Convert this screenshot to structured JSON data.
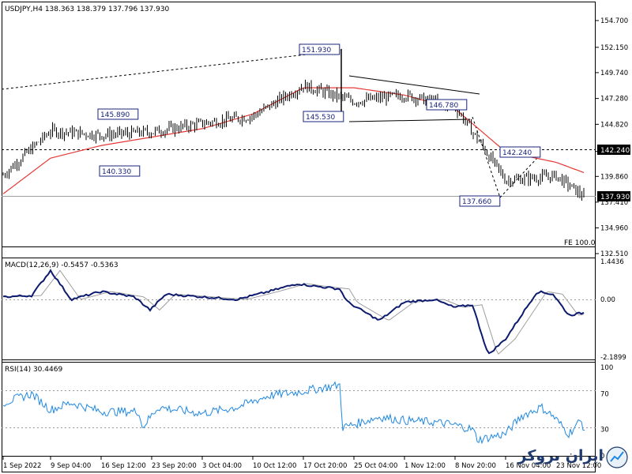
{
  "header": {
    "symbol_timeframe": "USDJPY,H4",
    "ohlc": "138.363 138.379 137.796 137.930"
  },
  "price_axis": {
    "ticks": [
      "154.700",
      "152.150",
      "149.740",
      "147.280",
      "144.820",
      "142.240",
      "139.860",
      "137.410",
      "134.960",
      "132.510"
    ],
    "current_price_label": "137.930",
    "level_label": "142.240"
  },
  "macd": {
    "label": "MACD(12,26,9) -0.5457 -0.5363",
    "ticks": [
      "1.4436",
      "0.00",
      "-2.1899"
    ],
    "zero_label": "0.00"
  },
  "rsi": {
    "label": "RSI(14) 30.4469",
    "ticks": [
      "100",
      "70",
      "30",
      "0"
    ]
  },
  "fe_label": "FE 100.0",
  "time_axis": [
    "1 Sep 2022",
    "9 Sep 04:00",
    "16 Sep 12:00",
    "23 Sep 20:00",
    "3 Oct 04:00",
    "10 Oct 12:00",
    "17 Oct 20:00",
    "25 Oct 04:00",
    "1 Nov 12:00",
    "8 Nov 20:00",
    "16 Nov 04:00",
    "23 Nov 12:00"
  ],
  "annotations": [
    "145.890",
    "140.330",
    "151.930",
    "145.530",
    "146.780",
    "142.240",
    "137.660"
  ],
  "watermark": {
    "brand_text": "ایران بروکر",
    "icon": "chart-logo-icon"
  },
  "chart_data": {
    "type": "line",
    "title": "USDJPY,H4",
    "ylim": [
      132.51,
      154.7
    ],
    "x": [
      "1 Sep 2022",
      "9 Sep 04:00",
      "16 Sep 12:00",
      "23 Sep 20:00",
      "3 Oct 04:00",
      "10 Oct 12:00",
      "17 Oct 20:00",
      "25 Oct 04:00",
      "1 Nov 12:00",
      "8 Nov 20:00",
      "16 Nov 04:00",
      "23 Nov 12:00",
      "end"
    ],
    "series": [
      {
        "values": [
          140.0,
          144.2,
          143.8,
          144.1,
          144.9,
          145.6,
          148.5,
          147.0,
          147.6,
          146.5,
          139.5,
          139.9,
          137.9
        ]
      },
      {
        "values": [
          138.2,
          141.6,
          142.8,
          143.6,
          144.4,
          145.8,
          148.3,
          148.3,
          147.6,
          146.3,
          142.2,
          141.2,
          140.2
        ]
      }
    ],
    "levels": [
      142.24,
      137.93
    ]
  }
}
